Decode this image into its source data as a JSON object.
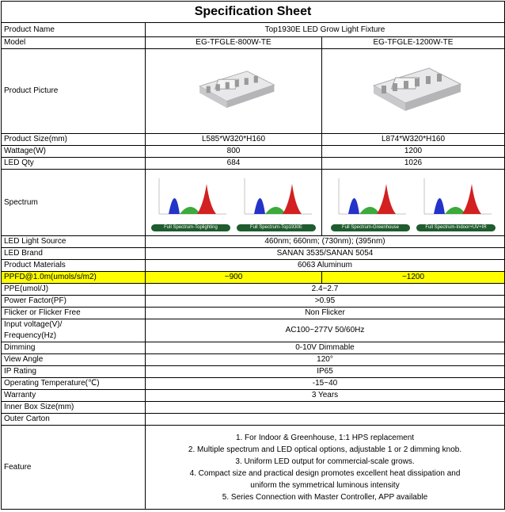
{
  "title": "Specification Sheet",
  "rows": [
    {
      "label": "Product Name",
      "values": [
        "Top1930E LED Grow Light Fixture"
      ]
    },
    {
      "label": "Model",
      "values": [
        "EG-TFGLE-800W-TE",
        "EG-TFGLE-1200W-TE"
      ]
    },
    {
      "label": "Product Picture",
      "values": []
    },
    {
      "label": "Product Size(mm)",
      "values": [
        "L585*W320*H160",
        "L874*W320*H160"
      ]
    },
    {
      "label": "Wattage(W)",
      "values": [
        "800",
        "1200"
      ]
    },
    {
      "label": "LED Qty",
      "values": [
        "684",
        "1026"
      ]
    },
    {
      "label": "Spectrum",
      "values": [],
      "spectra": [
        "Full Spectrum-Toplighting",
        "Full Spectrum-Top1930E",
        "Full Spectrum-Greenhouse",
        "Full Spectrum-Indoor+UV+IR"
      ]
    },
    {
      "label": "LED Light Source",
      "values": [
        "460nm; 660nm; (730nm); (395nm)"
      ]
    },
    {
      "label": "LED Brand",
      "values": [
        "SANAN 3535/SANAN 5054"
      ]
    },
    {
      "label": "Product Materials",
      "values": [
        "6063 Aluminum"
      ]
    },
    {
      "label": "PPFD@1.0m(umols/s/m2)",
      "values": [
        "~900",
        "~1200"
      ],
      "highlight": "#ffff00"
    },
    {
      "label": "PPE(umol/J)",
      "values": [
        "2.4~2.7"
      ]
    },
    {
      "label": "Power Factor(PF)",
      "values": [
        ">0.95"
      ]
    },
    {
      "label": "Flicker or Flicker Free",
      "values": [
        "Non Flicker"
      ]
    },
    {
      "label": "Input voltage(V)/\nFrequency(Hz)",
      "values": [
        "AC100~277V 50/60Hz"
      ]
    },
    {
      "label": "Dimming",
      "values": [
        "0-10V Dimmable"
      ]
    },
    {
      "label": "View Angle",
      "values": [
        "120°"
      ]
    },
    {
      "label": "IP Rating",
      "values": [
        "IP65"
      ]
    },
    {
      "label": "Operating Temperature(℃)",
      "values": [
        "-15~40"
      ]
    },
    {
      "label": "Warranty",
      "values": [
        "3 Years"
      ]
    },
    {
      "label": "Inner Box Size(mm)",
      "values": []
    },
    {
      "label": "Outer Carton",
      "values": []
    },
    {
      "label": "Feature",
      "values": [],
      "features": [
        "1. For Indoor & Greenhouse, 1:1 HPS replacement",
        "2. Multiple spectrum and LED optical options, adjustable 1 or 2 dimming knob.",
        "3. Uniform LED output for commercial-scale grows.",
        "4. Compact size and practical design promotes excellent heat dissipation and uniform the symmetrical luminous intensity",
        "5. Series Connection with Master Controller, APP available"
      ]
    }
  ]
}
